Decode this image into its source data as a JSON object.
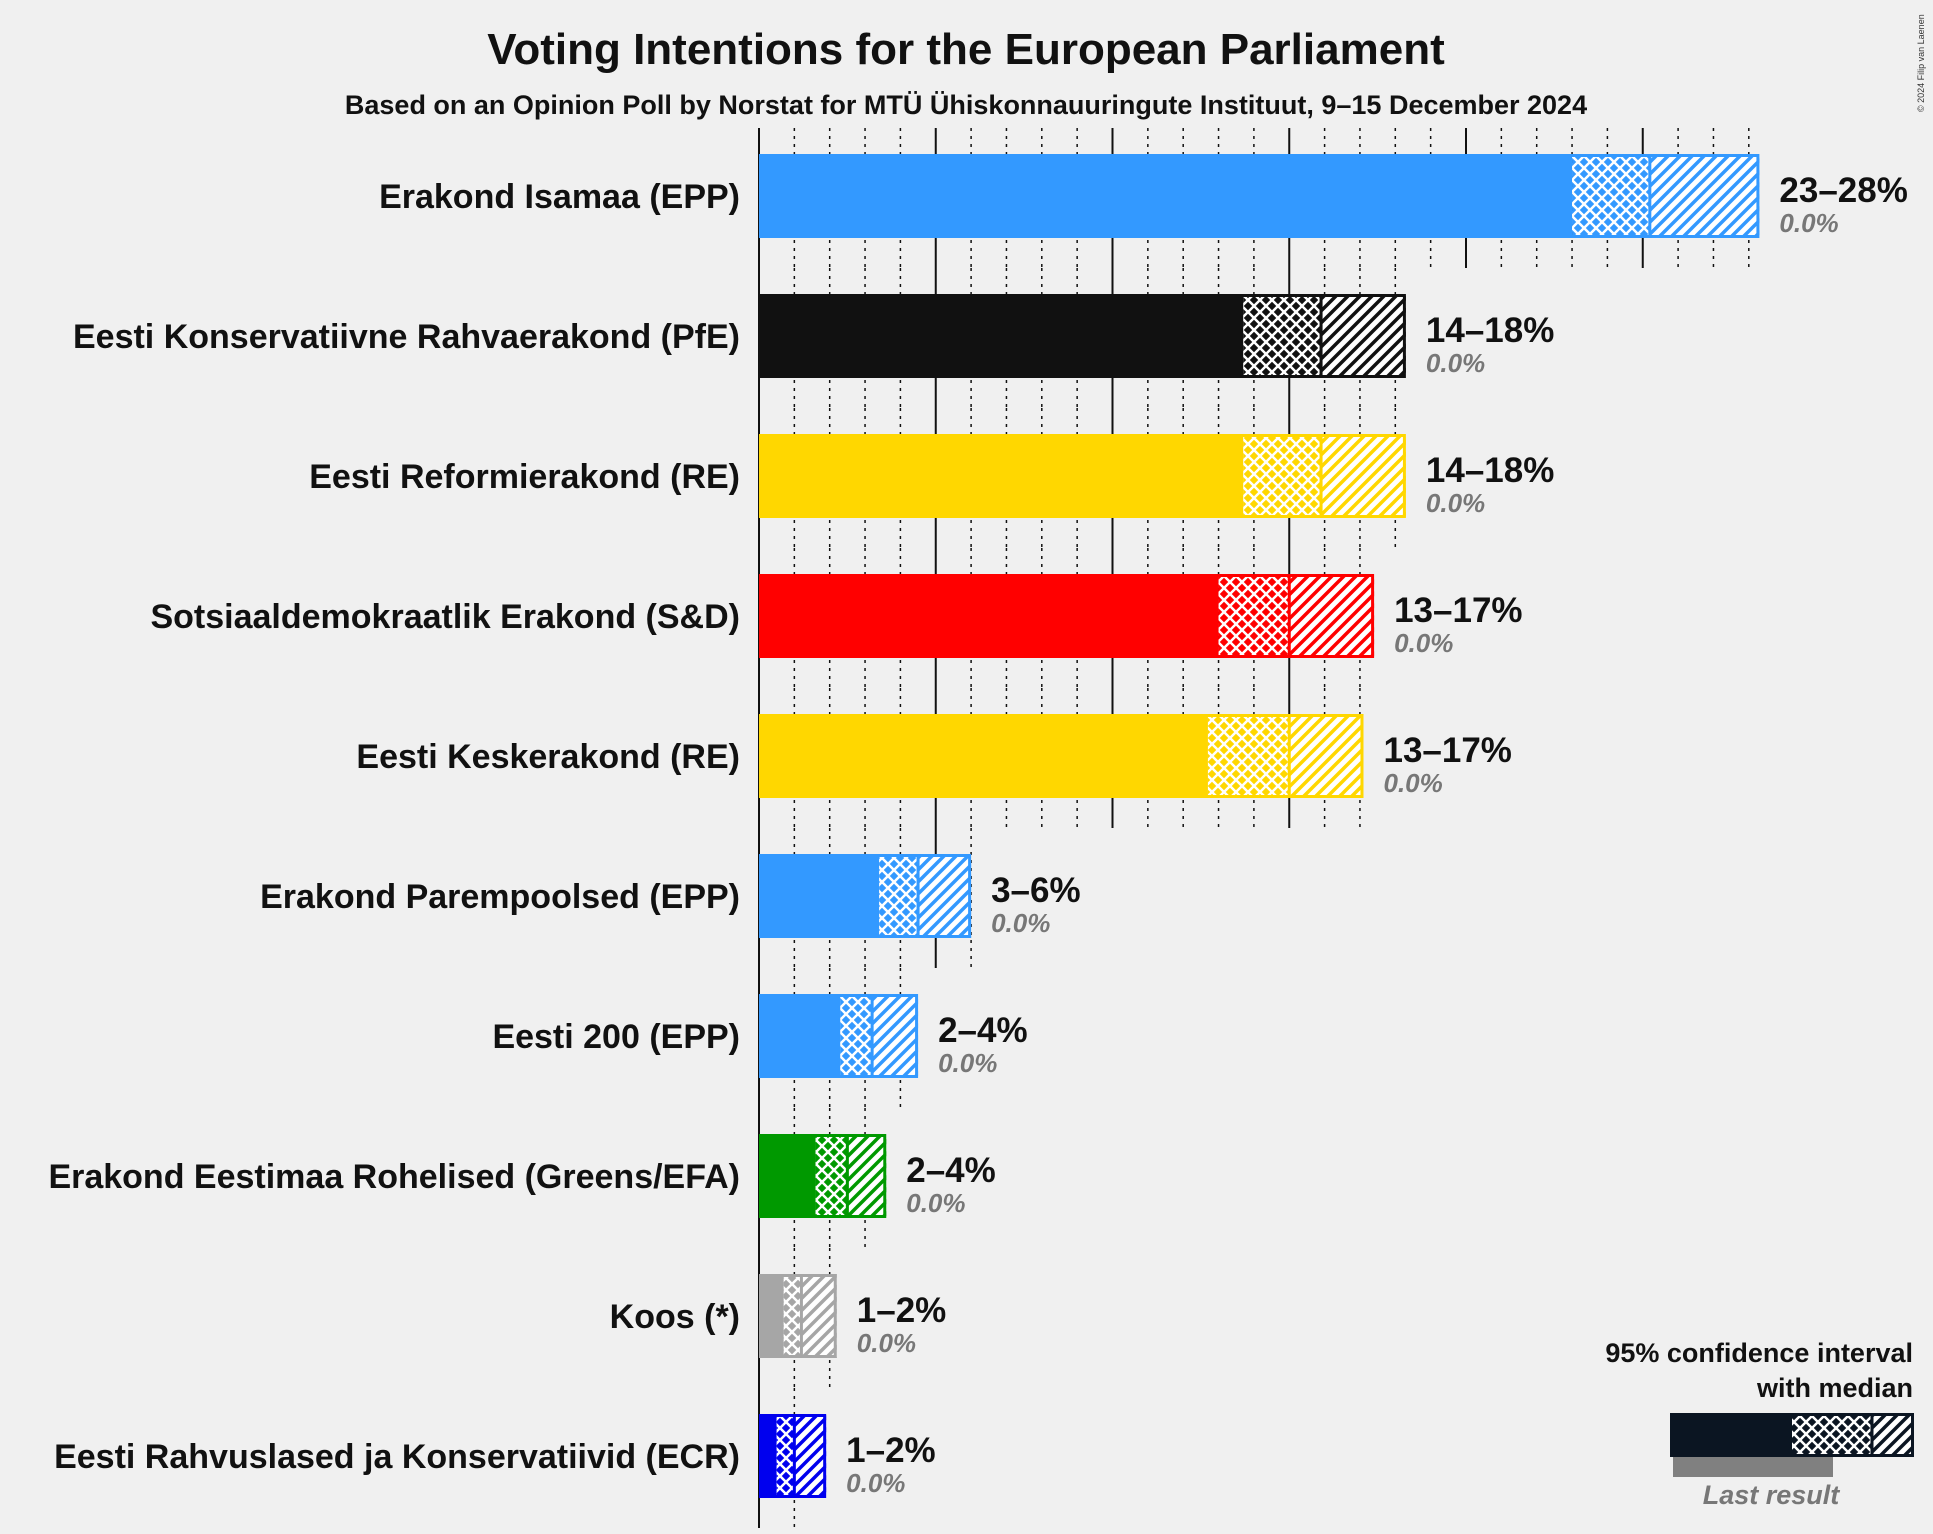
{
  "chart_data": {
    "type": "bar",
    "title": "Voting Intentions for the European Parliament",
    "subtitle": "Based on an Opinion Poll by Norstat for MTÜ Ühiskonnauuringute Instituut, 9–15 December 2024",
    "copyright": "© 2024 Filip van Laenen",
    "xlim": [
      0,
      28.5
    ],
    "series": [
      {
        "name": "Erakond Isamaa (EPP)",
        "color": "#3399ff",
        "ci_low": 23,
        "median": 25.2,
        "ci_high": 28.3,
        "range_label": "23–28%",
        "last_label": "0.0%"
      },
      {
        "name": "Eesti Konservatiivne Rahvaerakond (PfE)",
        "color": "#111111",
        "ci_low": 13.7,
        "median": 15.9,
        "ci_high": 18.3,
        "range_label": "14–18%",
        "last_label": "0.0%"
      },
      {
        "name": "Eesti Reformierakond (RE)",
        "color": "#ffd700",
        "ci_low": 13.7,
        "median": 15.9,
        "ci_high": 18.3,
        "range_label": "14–18%",
        "last_label": "0.0%"
      },
      {
        "name": "Sotsiaaldemokraatlik Erakond (S&D)",
        "color": "#ff0000",
        "ci_low": 13.0,
        "median": 15.0,
        "ci_high": 17.4,
        "range_label": "13–17%",
        "last_label": "0.0%"
      },
      {
        "name": "Eesti Keskerakond (RE)",
        "color": "#ffd700",
        "ci_low": 12.7,
        "median": 15.0,
        "ci_high": 17.1,
        "range_label": "13–17%",
        "last_label": "0.0%"
      },
      {
        "name": "Erakond Parempoolsed (EPP)",
        "color": "#3399ff",
        "ci_low": 3.4,
        "median": 4.5,
        "ci_high": 6.0,
        "range_label": "3–6%",
        "last_label": "0.0%"
      },
      {
        "name": "Eesti 200 (EPP)",
        "color": "#3399ff",
        "ci_low": 2.3,
        "median": 3.2,
        "ci_high": 4.5,
        "range_label": "2–4%",
        "last_label": "0.0%"
      },
      {
        "name": "Erakond Eestimaa Rohelised (Greens/EFA)",
        "color": "#009900",
        "ci_low": 1.6,
        "median": 2.5,
        "ci_high": 3.6,
        "range_label": "2–4%",
        "last_label": "0.0%"
      },
      {
        "name": "Koos (*)",
        "color": "#a6a6a6",
        "ci_low": 0.7,
        "median": 1.2,
        "ci_high": 2.2,
        "range_label": "1–2%",
        "last_label": "0.0%"
      },
      {
        "name": "Eesti Rahvuslased ja Konservatiivid (ECR)",
        "color": "#0000ee",
        "ci_low": 0.5,
        "median": 1.0,
        "ci_high": 1.9,
        "range_label": "1–2%",
        "last_label": "0.0%"
      }
    ],
    "legend": {
      "line1": "95% confidence interval",
      "line2": "with median",
      "last_result": "Last result",
      "placement": "bottom-right"
    }
  }
}
